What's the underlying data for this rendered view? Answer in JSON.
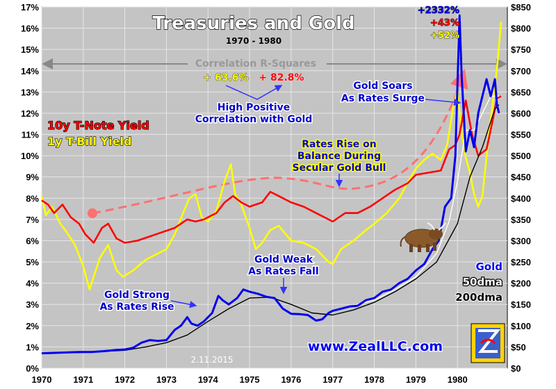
{
  "chart_data": {
    "type": "line",
    "title": "Treasuries and Gold",
    "subtitle": "1970 - 1980",
    "x_ticks": [
      "1970",
      "1971",
      "1972",
      "1973",
      "1974",
      "1975",
      "1976",
      "1977",
      "1978",
      "1979",
      "1980"
    ],
    "xlim": [
      1970,
      1981.2
    ],
    "y_left": {
      "ylim": [
        0,
        17
      ],
      "ticks": [
        "0%",
        "1%",
        "2%",
        "3%",
        "4%",
        "5%",
        "6%",
        "7%",
        "8%",
        "9%",
        "10%",
        "11%",
        "12%",
        "13%",
        "14%",
        "15%",
        "16%",
        "17%"
      ]
    },
    "y_right": {
      "ylim": [
        0,
        850
      ],
      "ticks": [
        "$0",
        "$50",
        "$100",
        "$150",
        "$200",
        "$250",
        "$300",
        "$350",
        "$400",
        "$450",
        "$500",
        "$550",
        "$600",
        "$650",
        "$700",
        "$750",
        "$800",
        "$850"
      ]
    },
    "series": [
      {
        "name": "10y T-Note Yield",
        "color": "#ff0000",
        "axis": "left",
        "x": [
          1970.0,
          1970.15,
          1970.3,
          1970.5,
          1970.7,
          1970.9,
          1971.05,
          1971.25,
          1971.45,
          1971.6,
          1971.8,
          1972.0,
          1972.3,
          1972.6,
          1972.9,
          1973.2,
          1973.5,
          1973.7,
          1973.9,
          1974.2,
          1974.4,
          1974.6,
          1974.8,
          1975.0,
          1975.3,
          1975.5,
          1975.7,
          1976.0,
          1976.3,
          1976.6,
          1976.9,
          1977.0,
          1977.3,
          1977.6,
          1977.9,
          1978.2,
          1978.5,
          1978.8,
          1979.0,
          1979.3,
          1979.6,
          1979.8,
          1979.95,
          1980.05,
          1980.2,
          1980.35,
          1980.5,
          1980.7,
          1980.85,
          1980.95,
          1981.05
        ],
        "values": [
          7.9,
          7.7,
          7.3,
          7.7,
          7.1,
          6.8,
          6.3,
          5.9,
          6.6,
          6.8,
          6.1,
          5.9,
          6.0,
          6.2,
          6.4,
          6.6,
          7.0,
          6.9,
          7.0,
          7.3,
          7.8,
          8.1,
          7.8,
          7.6,
          7.8,
          8.3,
          8.1,
          7.8,
          7.6,
          7.3,
          7.0,
          6.9,
          7.3,
          7.3,
          7.6,
          8.0,
          8.4,
          8.7,
          9.1,
          9.2,
          9.3,
          10.3,
          10.5,
          11.0,
          12.6,
          11.0,
          10.0,
          10.3,
          11.7,
          12.7,
          12.8
        ]
      },
      {
        "name": "1y T-Bill Yield",
        "color": "#ffff00",
        "axis": "left",
        "x": [
          1970.0,
          1970.1,
          1970.25,
          1970.45,
          1970.6,
          1970.8,
          1971.0,
          1971.15,
          1971.4,
          1971.6,
          1971.8,
          1971.95,
          1972.2,
          1972.5,
          1972.8,
          1973.0,
          1973.2,
          1973.4,
          1973.55,
          1973.7,
          1973.85,
          1974.0,
          1974.2,
          1974.4,
          1974.55,
          1974.65,
          1974.8,
          1975.0,
          1975.15,
          1975.3,
          1975.5,
          1975.7,
          1976.0,
          1976.3,
          1976.6,
          1976.9,
          1977.0,
          1977.2,
          1977.5,
          1977.8,
          1978.0,
          1978.3,
          1978.6,
          1978.85,
          1979.0,
          1979.2,
          1979.4,
          1979.6,
          1979.75,
          1979.9,
          1980.0,
          1980.1,
          1980.2,
          1980.3,
          1980.4,
          1980.5,
          1980.6,
          1980.75,
          1980.85,
          1980.95,
          1981.05
        ],
        "values": [
          8.1,
          7.2,
          7.6,
          6.8,
          6.4,
          5.8,
          4.8,
          3.7,
          5.2,
          5.8,
          4.6,
          4.3,
          4.6,
          5.1,
          5.4,
          5.6,
          6.3,
          7.3,
          8.0,
          8.2,
          7.1,
          6.9,
          7.4,
          8.8,
          9.6,
          8.2,
          7.7,
          6.6,
          5.6,
          5.9,
          6.5,
          6.7,
          6.0,
          5.9,
          5.6,
          5.0,
          4.9,
          5.6,
          6.0,
          6.5,
          6.8,
          7.3,
          8.0,
          8.9,
          9.4,
          9.8,
          10.1,
          9.8,
          10.5,
          12.3,
          13.1,
          11.1,
          9.9,
          9.2,
          8.2,
          7.6,
          8.1,
          10.9,
          12.5,
          14.1,
          16.3
        ]
      },
      {
        "name": "Gold",
        "color": "#0000ee",
        "axis": "right",
        "x": [
          1970.0,
          1970.3,
          1970.6,
          1970.9,
          1971.2,
          1971.5,
          1971.8,
          1972.0,
          1972.2,
          1972.4,
          1972.6,
          1972.8,
          1973.0,
          1973.2,
          1973.35,
          1973.5,
          1973.6,
          1973.75,
          1973.9,
          1974.1,
          1974.25,
          1974.35,
          1974.5,
          1974.7,
          1974.85,
          1975.0,
          1975.2,
          1975.4,
          1975.6,
          1975.8,
          1976.0,
          1976.2,
          1976.4,
          1976.6,
          1976.75,
          1976.9,
          1977.0,
          1977.2,
          1977.4,
          1977.6,
          1977.8,
          1978.0,
          1978.2,
          1978.4,
          1978.6,
          1978.8,
          1979.0,
          1979.2,
          1979.4,
          1979.55,
          1979.7,
          1979.85,
          1979.95,
          1980.05,
          1980.1,
          1980.2,
          1980.3,
          1980.4,
          1980.5,
          1980.6,
          1980.7,
          1980.8,
          1980.9,
          1980.95,
          1981.0
        ],
        "values": [
          35,
          36,
          37,
          38,
          38,
          40,
          43,
          44,
          48,
          60,
          66,
          64,
          66,
          90,
          100,
          120,
          105,
          100,
          110,
          130,
          170,
          160,
          150,
          165,
          185,
          180,
          175,
          168,
          165,
          140,
          128,
          127,
          125,
          112,
          115,
          130,
          135,
          140,
          145,
          147,
          160,
          165,
          180,
          185,
          200,
          210,
          230,
          245,
          280,
          300,
          380,
          400,
          500,
          830,
          690,
          510,
          560,
          520,
          600,
          640,
          680,
          640,
          680,
          620,
          600
        ]
      },
      {
        "name": "50dma",
        "color": "#ffffff",
        "axis": "right",
        "x": [
          1977.5,
          1978.0,
          1978.5,
          1979.0,
          1979.5,
          1979.8,
          1980.0,
          1980.2,
          1980.4,
          1980.6,
          1980.8,
          1981.0
        ],
        "values": [
          148,
          160,
          185,
          215,
          270,
          345,
          440,
          560,
          560,
          600,
          640,
          640
        ]
      },
      {
        "name": "200dma",
        "color": "#000000",
        "axis": "right",
        "x": [
          1970.0,
          1971.0,
          1972.0,
          1972.5,
          1973.0,
          1973.5,
          1974.0,
          1974.5,
          1975.0,
          1975.5,
          1976.0,
          1976.5,
          1977.0,
          1977.5,
          1978.0,
          1978.5,
          1979.0,
          1979.5,
          1980.0,
          1980.3,
          1980.6,
          1980.9,
          1981.0
        ],
        "values": [
          35,
          37,
          42,
          50,
          60,
          78,
          110,
          140,
          165,
          167,
          150,
          130,
          125,
          137,
          155,
          180,
          210,
          250,
          340,
          450,
          520,
          610,
          620
        ]
      }
    ],
    "correlation_labels": {
      "title": "Correlation R-Squares",
      "t_bill": "+ 63.6%",
      "t_note": "+ 82.8%"
    },
    "gains": {
      "gold": "+2332%",
      "t_note": "+43%",
      "t_bill": "+52%"
    },
    "annotations": {
      "high_corr": [
        "High Positive",
        "Correlation with Gold"
      ],
      "soars": [
        "Gold Soars",
        "As Rates Surge"
      ],
      "rates_rise": [
        "Rates Rise on",
        "Balance During",
        "Secular Gold Bull"
      ],
      "weak": [
        "Gold Weak",
        "As Rates Fall"
      ],
      "strong": [
        "Gold Strong",
        "As Rates Rise"
      ]
    },
    "legend": {
      "note": "10y T-Note Yield",
      "bill": "1y T-Bill Yield",
      "gold": "Gold",
      "ma50": "50dma",
      "ma200": "200dma"
    },
    "watermark": "www.ZealLLC.com",
    "date_stamp": "2.11.2015",
    "colors": {
      "plot_bg": "#c4c4c4",
      "note": "#ff0000",
      "bill": "#ffff00",
      "gold": "#0000ee",
      "annotation": "#0000cc",
      "trend": "#ff7070"
    }
  }
}
